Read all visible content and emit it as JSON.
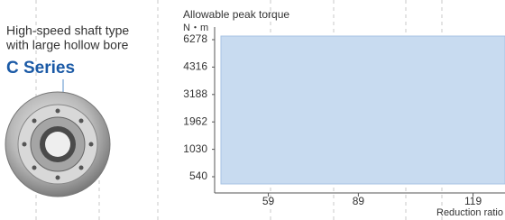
{
  "left": {
    "description": [
      "High-speed shaft type",
      "with large hollow bore"
    ],
    "series_name": "C Series"
  },
  "chart_data": {
    "type": "range",
    "y_label": "Allowable peak torque",
    "y_unit": "N・m",
    "x_label": "Reduction ratio",
    "yticks": [
      540,
      1030,
      1962,
      3188,
      4316,
      6278
    ],
    "xticks": [
      59,
      89,
      119
    ],
    "color": "#c8dbf0"
  }
}
